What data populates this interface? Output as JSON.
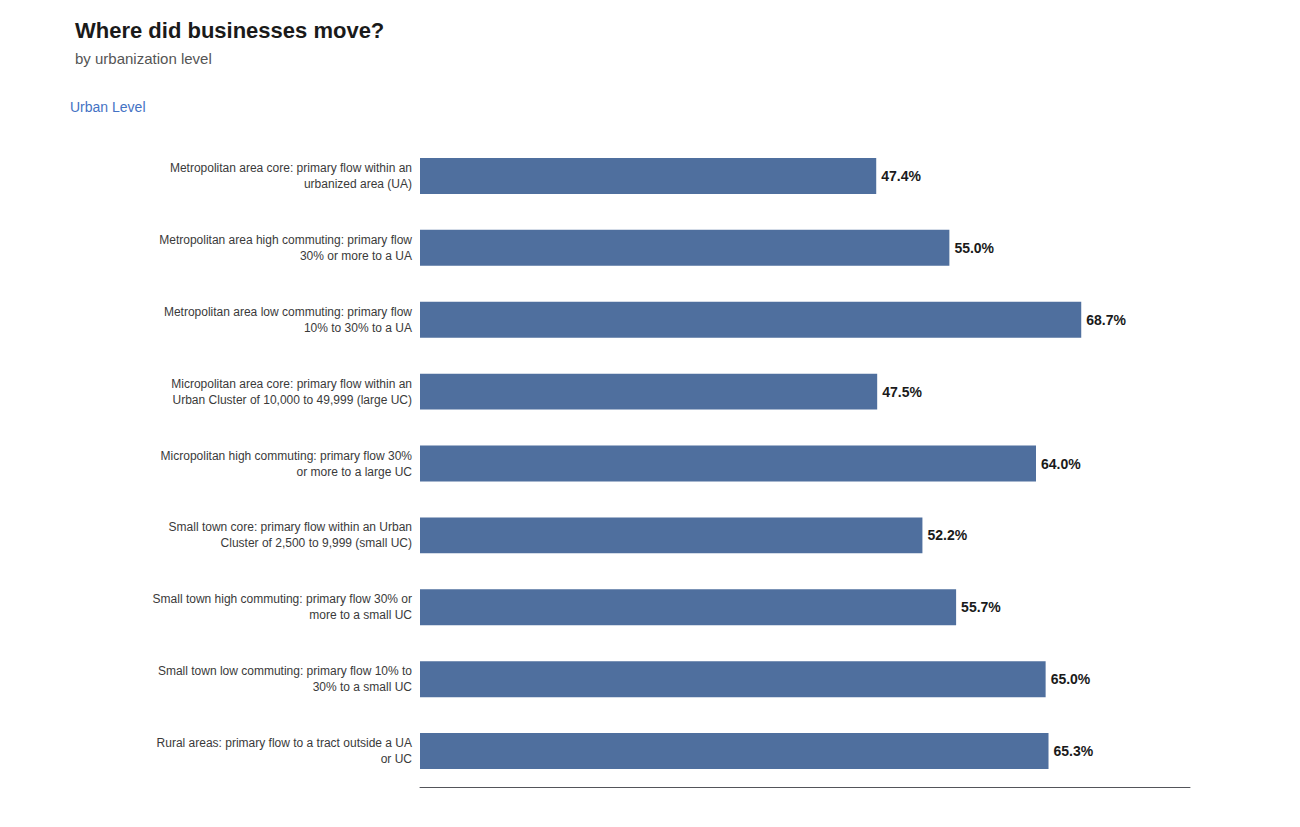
{
  "chart_data": {
    "type": "bar",
    "orientation": "horizontal",
    "title": "Where did businesses move?",
    "subtitle": "by urbanization level",
    "ylabel": "Urban Level",
    "categories": [
      "Metropolitan area core: primary flow within an\nurbanized area (UA)",
      "Metropolitan area high commuting: primary flow\n30% or more to a UA",
      "Metropolitan area low commuting: primary flow\n10% to 30% to a UA",
      "Micropolitan area core: primary flow within an\nUrban Cluster of 10,000 to 49,999 (large UC)",
      "Micropolitan high commuting: primary flow 30%\nor more to a large UC",
      "Small town core: primary flow within an Urban\nCluster of 2,500 to 9,999 (small UC)",
      "Small town high commuting: primary flow 30% or\nmore to a small UC",
      "Small town low commuting: primary flow 10% to\n30% to a small UC",
      "Rural areas: primary flow to a tract outside a UA\nor UC"
    ],
    "values": [
      47.4,
      55.0,
      68.7,
      47.5,
      64.0,
      52.2,
      55.7,
      65.0,
      65.3
    ],
    "value_labels": [
      "47.4%",
      "55.0%",
      "68.7%",
      "47.5%",
      "64.0%",
      "52.2%",
      "55.7%",
      "65.0%",
      "65.3%"
    ],
    "color": "#4f6f9e",
    "xlim": [
      0,
      80
    ],
    "data_labels": true,
    "tick_labels": "y",
    "grid": false
  }
}
